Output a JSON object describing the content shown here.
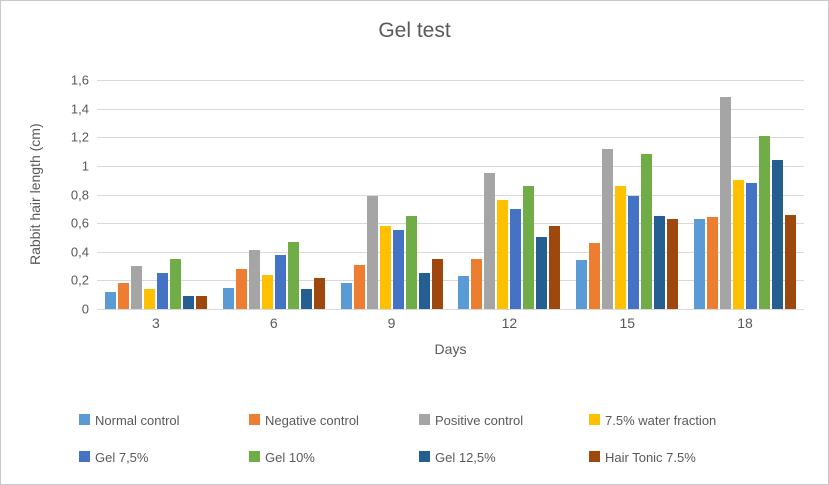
{
  "figure": {
    "background": "#FFFFFF",
    "border_color": "#C9C9C9",
    "text_color": "#595959",
    "gridline_color": "#D9D9D9"
  },
  "chart_data": {
    "type": "bar",
    "title": "Gel test",
    "xlabel": "Days",
    "ylabel": "Rabbit hair length (cm)",
    "categories": [
      "3",
      "6",
      "9",
      "12",
      "15",
      "18"
    ],
    "ylim": [
      0,
      1.6
    ],
    "y_tick_step": 0.2,
    "y_tick_labels": [
      "0",
      "0,2",
      "0,4",
      "0,6",
      "0,8",
      "1",
      "1,2",
      "1,4",
      "1,6"
    ],
    "grid": true,
    "legend_position": "bottom",
    "series": [
      {
        "name": "Normal control",
        "color": "#5B9BD5",
        "values": [
          0.12,
          0.15,
          0.18,
          0.23,
          0.34,
          0.63
        ]
      },
      {
        "name": "Negative control",
        "color": "#ED7D31",
        "values": [
          0.18,
          0.28,
          0.31,
          0.35,
          0.46,
          0.64
        ]
      },
      {
        "name": "Positive control",
        "color": "#A5A5A5",
        "values": [
          0.3,
          0.41,
          0.79,
          0.95,
          1.12,
          1.48
        ]
      },
      {
        "name": "7.5% water fraction",
        "color": "#FFC000",
        "values": [
          0.14,
          0.24,
          0.58,
          0.76,
          0.86,
          0.9
        ]
      },
      {
        "name": "Gel 7,5%",
        "color": "#4472C4",
        "values": [
          0.25,
          0.38,
          0.55,
          0.7,
          0.79,
          0.88
        ]
      },
      {
        "name": "Gel 10%",
        "color": "#70AD47",
        "values": [
          0.35,
          0.47,
          0.65,
          0.86,
          1.08,
          1.21
        ]
      },
      {
        "name": "Gel 12,5%",
        "color": "#255E91",
        "values": [
          0.09,
          0.14,
          0.25,
          0.5,
          0.65,
          1.04
        ]
      },
      {
        "name": "Hair Tonic 7.5%",
        "color": "#9E480E",
        "values": [
          0.09,
          0.22,
          0.35,
          0.58,
          0.63,
          0.66
        ]
      }
    ]
  }
}
